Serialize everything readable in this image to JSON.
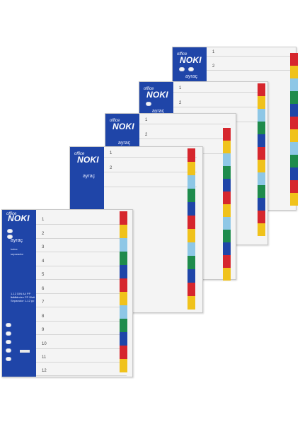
{
  "brand": {
    "logo": "NOKI",
    "tag": "office",
    "word": "ayraç",
    "index": "index",
    "separador": "separador"
  },
  "numbers": [
    "1",
    "2",
    "3",
    "4",
    "5",
    "6",
    "7",
    "8",
    "9",
    "10",
    "11",
    "12"
  ],
  "tab_colors": [
    "#d6262d",
    "#f0c21b",
    "#8ec7e6",
    "#1e8b4c",
    "#1f45a8",
    "#d6262d",
    "#f0c21b",
    "#8ec7e6",
    "#1e8b4c",
    "#1f45a8",
    "#d6262d",
    "#f0c21b"
  ],
  "legend_lines": [
    "1-12 DIN A4 PP index",
    "1-12 Index PP Blatt",
    "Separador 1-12 pp"
  ]
}
